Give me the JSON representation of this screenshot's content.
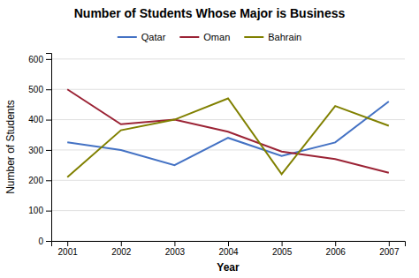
{
  "chart_data": {
    "type": "line",
    "title": "Number of Students Whose Major is Business",
    "xlabel": "Year",
    "ylabel": "Number of Students",
    "x": [
      2001,
      2002,
      2003,
      2004,
      2005,
      2006,
      2007
    ],
    "series": [
      {
        "name": "Qatar",
        "color": "#4472C4",
        "values": [
          325,
          300,
          250,
          340,
          280,
          325,
          460
        ]
      },
      {
        "name": "Oman",
        "color": "#9B2335",
        "values": [
          500,
          385,
          400,
          360,
          295,
          270,
          225
        ]
      },
      {
        "name": "Bahrain",
        "color": "#808000",
        "values": [
          210,
          365,
          400,
          470,
          220,
          445,
          380
        ]
      }
    ],
    "xlim": [
      2000.7,
      2007.3
    ],
    "xticks": [
      2001,
      2002,
      2003,
      2004,
      2005,
      2006,
      2007
    ],
    "ylim": [
      0,
      620
    ],
    "yticks": [
      0,
      100,
      200,
      300,
      400,
      500,
      600
    ],
    "grid": true,
    "legend": "top"
  }
}
